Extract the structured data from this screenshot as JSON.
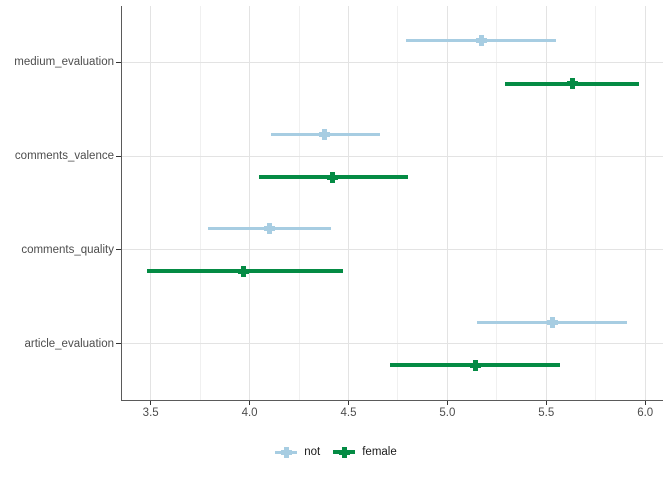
{
  "chart_data": {
    "type": "scatter",
    "subtype": "dot-and-ci-forest-plot",
    "orientation": "horizontal",
    "title": "",
    "xlabel": "",
    "ylabel": "",
    "categories": [
      "medium_evaluation",
      "comments_valence",
      "comments_quality",
      "article_evaluation"
    ],
    "x_axis": {
      "range": [
        3.355,
        6.09
      ],
      "ticks": [
        3.5,
        4.0,
        4.5,
        5.0,
        5.5,
        6.0
      ],
      "tick_labels": [
        "3.5",
        "4.0",
        "4.5",
        "5.0",
        "5.5",
        "6.0"
      ],
      "minor_ticks": [
        3.75,
        4.25,
        4.75,
        5.25,
        5.75
      ]
    },
    "grid": {
      "major": true,
      "minor_vertical": true,
      "horizontal_minor": false
    },
    "legend": {
      "position": "bottom-center"
    },
    "series": [
      {
        "name": "not",
        "color": "#a7cde2",
        "line_width": 3,
        "points": [
          {
            "category": "medium_evaluation",
            "estimate": 5.17,
            "ci_low": 4.79,
            "ci_high": 5.55
          },
          {
            "category": "comments_valence",
            "estimate": 4.38,
            "ci_low": 4.11,
            "ci_high": 4.66
          },
          {
            "category": "comments_quality",
            "estimate": 4.1,
            "ci_low": 3.79,
            "ci_high": 4.41
          },
          {
            "category": "article_evaluation",
            "estimate": 5.53,
            "ci_low": 5.15,
            "ci_high": 5.91
          }
        ]
      },
      {
        "name": "female",
        "color": "#048b44",
        "line_width": 4,
        "points": [
          {
            "category": "medium_evaluation",
            "estimate": 5.63,
            "ci_low": 5.29,
            "ci_high": 5.97
          },
          {
            "category": "comments_valence",
            "estimate": 4.42,
            "ci_low": 4.05,
            "ci_high": 4.8
          },
          {
            "category": "comments_quality",
            "estimate": 3.97,
            "ci_low": 3.48,
            "ci_high": 4.47
          },
          {
            "category": "article_evaluation",
            "estimate": 5.14,
            "ci_low": 4.71,
            "ci_high": 5.57
          }
        ]
      }
    ],
    "style": {
      "grid_major_color": "#e3e3e3",
      "grid_minor_color": "#f0f0f0",
      "axis_line_color": "#5a5a5a",
      "tick_mark_color": "#333333",
      "axis_text_color": "#4d4d4d",
      "legend_text_color": "#1a1a1a",
      "panel_background": "#ffffff"
    }
  }
}
